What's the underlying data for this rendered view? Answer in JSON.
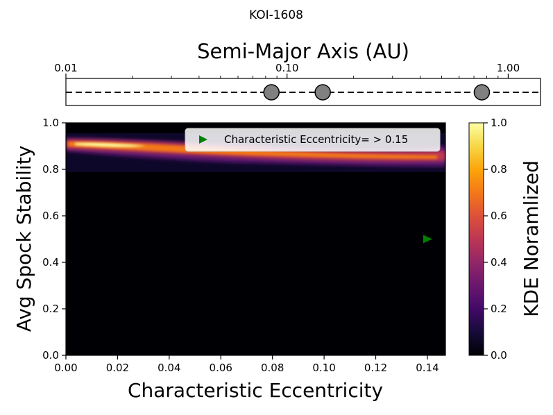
{
  "figure_title": "KOI-1608",
  "chart_data": [
    {
      "type": "scatter",
      "panel": "orbit-strip",
      "xlabel": "Semi-Major Axis (AU)",
      "xscale": "log",
      "xlim": [
        0.01,
        1.4
      ],
      "xticks": [
        0.01,
        0.1,
        1.0
      ],
      "xtick_labels": [
        "0.01",
        "0.10",
        "1.00"
      ],
      "planets_au": [
        0.085,
        0.145,
        0.76
      ],
      "marker_color": "#808080",
      "line_style": "dashed"
    },
    {
      "type": "heatmap",
      "panel": "kde",
      "xlabel": "Characteristic Eccentricity",
      "ylabel": "Avg Spock Stability",
      "xlim": [
        0.0,
        0.147
      ],
      "ylim": [
        0.0,
        1.0
      ],
      "xtick_labels": [
        "0.00",
        "0.02",
        "0.04",
        "0.06",
        "0.08",
        "0.10",
        "0.12",
        "0.14"
      ],
      "ytick_labels": [
        "0.0",
        "0.2",
        "0.4",
        "0.6",
        "0.8",
        "1.0"
      ],
      "colormap": "inferno",
      "kde_ridge": {
        "x": [
          0.0,
          0.02,
          0.04,
          0.06,
          0.08,
          0.1,
          0.12,
          0.14
        ],
        "y": [
          0.91,
          0.9,
          0.885,
          0.875,
          0.865,
          0.86,
          0.855,
          0.85
        ],
        "peak_density": [
          0.75,
          1.0,
          0.85,
          0.7,
          0.65,
          0.6,
          0.55,
          0.3
        ]
      },
      "marker": {
        "x": 0.14,
        "y": 0.5,
        "color": "#008000",
        "shape": "triangle-right"
      },
      "legend": {
        "label": "Characteristic Eccentricity= > 0.15",
        "position": "upper right"
      },
      "colorbar": {
        "label": "KDE Noramlized",
        "range": [
          0.0,
          1.0
        ],
        "tick_labels": [
          "0.0",
          "0.2",
          "0.4",
          "0.6",
          "0.8",
          "1.0"
        ]
      }
    }
  ]
}
